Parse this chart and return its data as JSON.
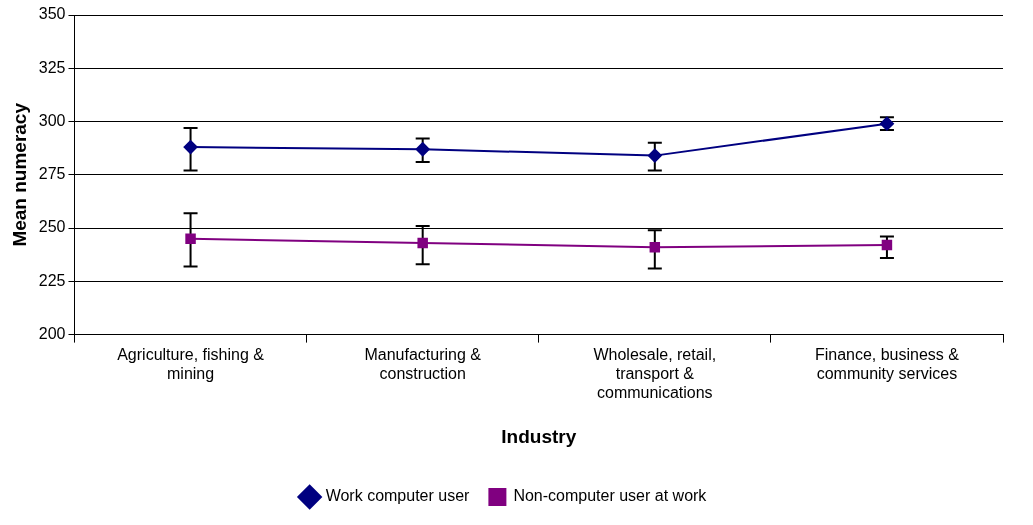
{
  "chart_data": {
    "type": "line",
    "xlabel": "Industry",
    "ylabel": "Mean numeracy",
    "categories": [
      "Agriculture, fishing & mining",
      "Manufacturing & construction",
      "Wholesale, retail, transport & communications",
      "Finance, business & community services"
    ],
    "series": [
      {
        "name": "Work computer user",
        "color": "#000080",
        "marker": "diamond",
        "values": [
          288,
          287,
          284,
          299
        ],
        "errors": [
          [
            277,
            297
          ],
          [
            281,
            292
          ],
          [
            277,
            290
          ],
          [
            296,
            302
          ]
        ]
      },
      {
        "name": "Non-computer user at work",
        "color": "#800080",
        "marker": "square",
        "values": [
          245,
          243,
          241,
          242
        ],
        "errors": [
          [
            232,
            257
          ],
          [
            233,
            251
          ],
          [
            231,
            249
          ],
          [
            236,
            246
          ]
        ]
      }
    ],
    "ylim": [
      200,
      350
    ],
    "yticks": [
      200,
      225,
      250,
      275,
      300,
      325,
      350
    ],
    "grid": "y",
    "legend": "bottom",
    "line_style": "solid"
  }
}
